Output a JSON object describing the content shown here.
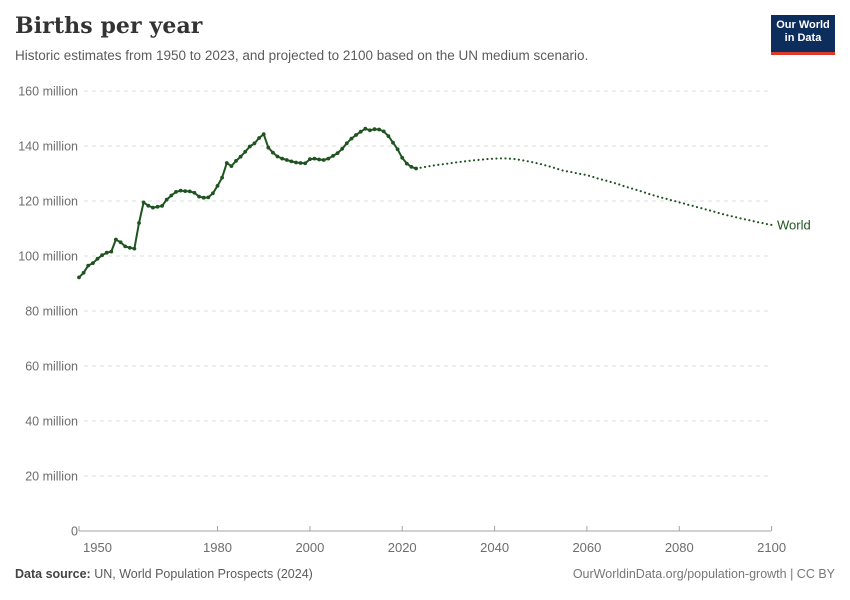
{
  "header": {
    "title": "Births per year",
    "subtitle": "Historic estimates from 1950 to 2023, and projected to 2100 based on the UN medium scenario.",
    "logo": {
      "line1": "Our World",
      "line2": "in Data",
      "bg_color": "#0d2e5c",
      "accent_color": "#dc3b2b"
    }
  },
  "footer": {
    "source_label": "Data source:",
    "source_rest": " UN, World Population Prospects (2024)",
    "right_text": "OurWorldinData.org/population-growth | CC BY"
  },
  "chart_data": {
    "type": "line",
    "title": "Births per year",
    "entity_label": "World",
    "line_color": "#1f5420",
    "unit": "births per year (millions)",
    "y_suffix": " million",
    "ylim": [
      0,
      160
    ],
    "xlim": [
      1950,
      2100
    ],
    "y_ticks": [
      0,
      20,
      40,
      60,
      80,
      100,
      120,
      140,
      160
    ],
    "x_ticks": [
      1950,
      1980,
      2000,
      2020,
      2040,
      2060,
      2080,
      2100
    ],
    "grid": true,
    "legend_position": "end-of-line",
    "series": [
      {
        "name": "World — historic estimates (1950–2023)",
        "style": "solid_with_markers",
        "start_year": 1950,
        "values_millions": [
          92.2,
          93.9,
          96.5,
          97.4,
          99.0,
          100.3,
          101.2,
          101.6,
          106.0,
          105.0,
          103.5,
          103.0,
          102.7,
          112.0,
          119.5,
          118.3,
          117.6,
          117.9,
          118.2,
          120.5,
          122.0,
          123.3,
          123.8,
          123.6,
          123.5,
          123.0,
          121.6,
          121.2,
          121.3,
          122.8,
          125.5,
          128.5,
          133.8,
          132.7,
          134.6,
          136.1,
          137.9,
          139.8,
          141.0,
          142.9,
          144.3,
          139.4,
          137.6,
          136.2,
          135.4,
          134.9,
          134.4,
          134.0,
          133.8,
          133.7,
          135.2,
          135.4,
          135.1,
          134.9,
          135.4,
          136.4,
          137.4,
          139.0,
          141.0,
          142.7,
          144.0,
          145.2,
          146.3,
          145.7,
          146.1,
          146.0,
          145.3,
          143.6,
          141.2,
          138.8,
          135.7,
          133.6,
          132.4,
          131.8
        ]
      },
      {
        "name": "World — UN medium scenario projection (2023–2100)",
        "style": "dotted",
        "start_year": 2023,
        "values_millions": [
          131.8,
          132.1,
          132.4,
          132.7,
          133.0,
          133.2,
          133.4,
          133.6,
          133.9,
          134.1,
          134.3,
          134.5,
          134.7,
          134.9,
          135.0,
          135.2,
          135.3,
          135.4,
          135.5,
          135.5,
          135.4,
          135.3,
          135.1,
          134.8,
          134.5,
          134.2,
          133.8,
          133.4,
          133.0,
          132.5,
          132.0,
          131.5,
          131.0,
          130.7,
          130.4,
          130.0,
          129.7,
          129.4,
          128.9,
          128.4,
          127.9,
          127.5,
          127.0,
          126.5,
          126.0,
          125.4,
          124.9,
          124.4,
          123.9,
          123.4,
          122.8,
          122.3,
          121.8,
          121.3,
          120.9,
          120.4,
          120.0,
          119.5,
          119.1,
          118.6,
          118.2,
          117.7,
          117.3,
          116.8,
          116.4,
          115.9,
          115.4,
          115.0,
          114.6,
          114.2,
          113.8,
          113.4,
          113.1,
          112.7,
          112.3,
          112.0,
          111.6,
          111.3
        ]
      }
    ]
  }
}
